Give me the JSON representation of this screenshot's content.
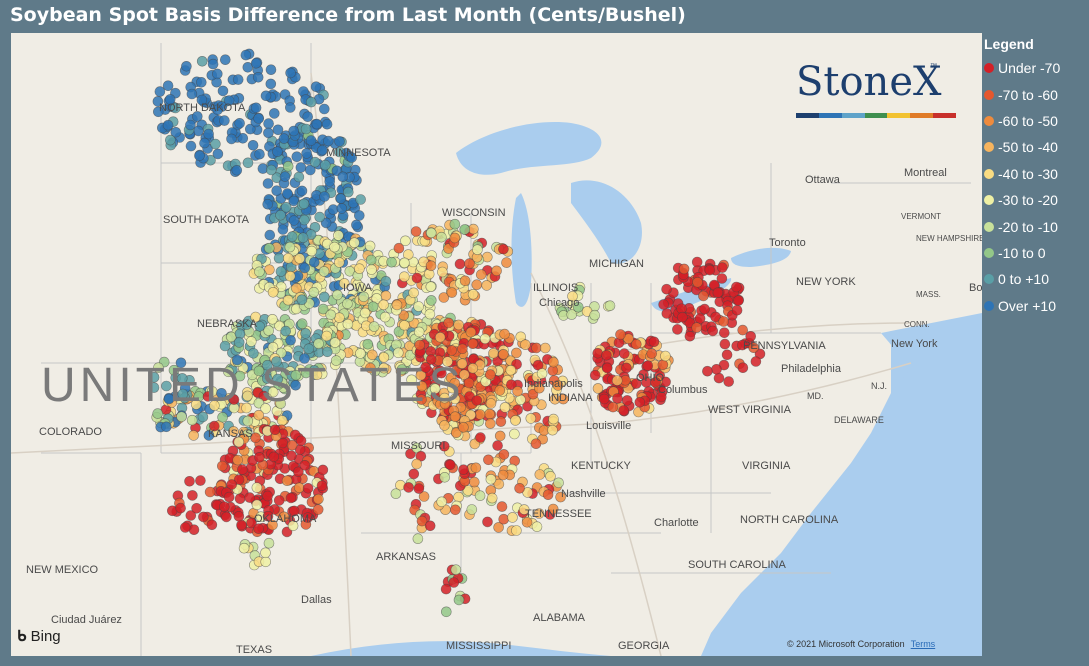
{
  "title": "Soybean Spot Basis Difference from Last Month (Cents/Bushel)",
  "legend": {
    "title": "Legend",
    "items": [
      {
        "label": "Under -70",
        "color": "#d32027"
      },
      {
        "label": "-70 to -60",
        "color": "#e4572e"
      },
      {
        "label": "-60 to -50",
        "color": "#ef8b3d"
      },
      {
        "label": "-50 to -40",
        "color": "#f6b45e"
      },
      {
        "label": "-40 to -30",
        "color": "#f9dc82"
      },
      {
        "label": "-30 to -20",
        "color": "#eef0a4"
      },
      {
        "label": "-20 to -10",
        "color": "#c8e19a"
      },
      {
        "label": "-10 to 0",
        "color": "#93c788"
      },
      {
        "label": "0 to +10",
        "color": "#5a9fa6"
      },
      {
        "label": "Over +10",
        "color": "#2e74b5"
      }
    ]
  },
  "logo": {
    "text": "StoneX",
    "tm": "™",
    "bar_colors": [
      "#1d3f6e",
      "#2e74b5",
      "#5fa3c9",
      "#3f8f4f",
      "#f2c230",
      "#e07b27",
      "#c8302b"
    ]
  },
  "map": {
    "country_label": "UNITED STATES",
    "state_labels": [
      "NORTH DAKOTA",
      "MINNESOTA",
      "SOUTH DAKOTA",
      "WISCONSIN",
      "MICHIGAN",
      "NEBRASKA",
      "IOWA",
      "ILLINOIS",
      "INDIANA",
      "OHIO",
      "PENNSYLVANIA",
      "NEW YORK",
      "COLORADO",
      "KANSAS",
      "MISSOURI",
      "KENTUCKY",
      "WEST VIRGINIA",
      "VIRGINIA",
      "OKLAHOMA",
      "ARKANSAS",
      "TENNESSEE",
      "NORTH CAROLINA",
      "SOUTH CAROLINA",
      "NEW MEXICO",
      "TEXAS",
      "MISSISSIPPI",
      "ALABAMA",
      "GEORGIA",
      "VERMONT",
      "NEW HAMPSHIRE",
      "MASS.",
      "CONN.",
      "MD.",
      "DELAWARE",
      "N.J."
    ],
    "city_labels": [
      "Ottawa",
      "Montreal",
      "Toronto",
      "Chicago",
      "Columbus",
      "Indianapolis",
      "Louisville",
      "Nashville",
      "Charlotte",
      "Philadelphia",
      "New York",
      "Dallas",
      "Ciudad Juárez",
      "Boston"
    ]
  },
  "attribution": {
    "bing": "Bing",
    "copyright": "© 2021 Microsoft Corporation",
    "terms": "Terms"
  }
}
